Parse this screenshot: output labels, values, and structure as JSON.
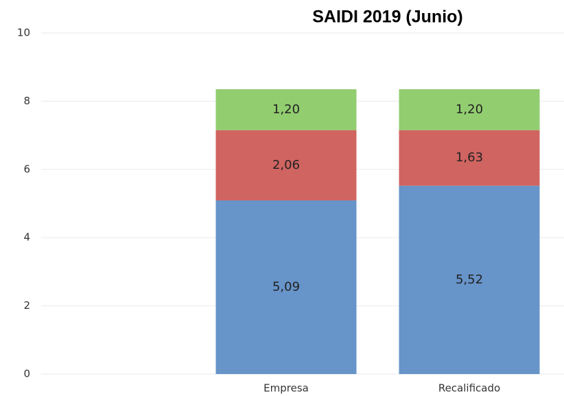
{
  "chart_data": {
    "type": "stacked_bar",
    "title": "SAIDI 2019 (Junio)",
    "categories": [
      null,
      "Empresa",
      "Recalificado"
    ],
    "series": [
      {
        "color": "#6794c9",
        "values": [
          null,
          5.09,
          5.52
        ],
        "value_labels": [
          null,
          "5,09",
          "5,52"
        ]
      },
      {
        "color": "#d06461",
        "values": [
          null,
          2.06,
          1.63
        ],
        "value_labels": [
          null,
          "2,06",
          "1,63"
        ]
      },
      {
        "color": "#92cd70",
        "values": [
          null,
          1.2,
          1.2
        ],
        "value_labels": [
          null,
          "1,20",
          "1,20"
        ]
      }
    ],
    "ylim": [
      0,
      10
    ],
    "yticks": [
      0,
      2,
      4,
      6,
      8,
      10
    ],
    "grid": true
  }
}
